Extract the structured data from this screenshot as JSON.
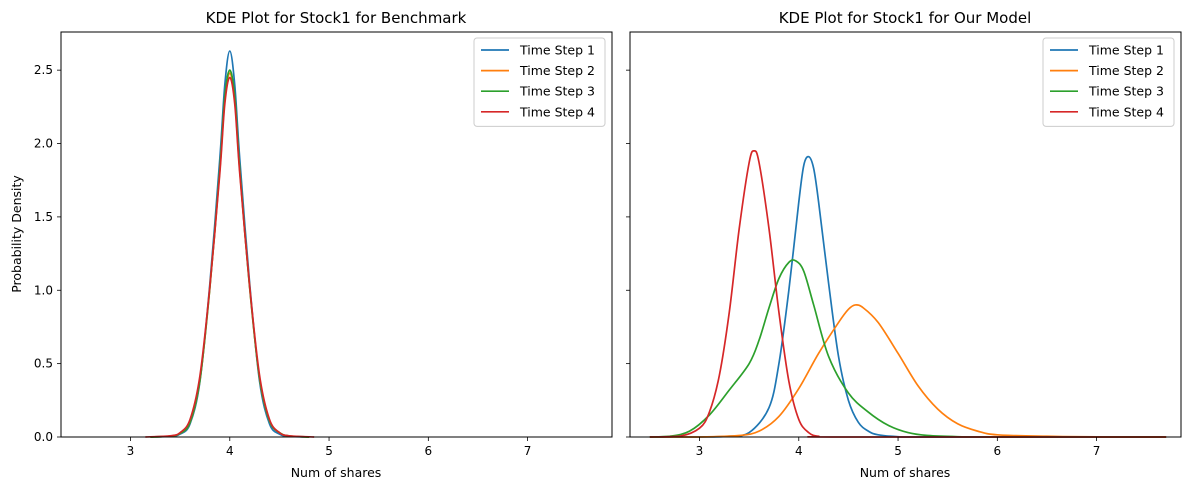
{
  "chart_data": [
    {
      "type": "line",
      "title": "KDE Plot for Stock1 for Benchmark",
      "xlabel": "Num of shares",
      "ylabel": "Probability Density",
      "xlim": [
        2.3,
        7.85
      ],
      "ylim": [
        0,
        2.76
      ],
      "xticks": [
        "3",
        "4",
        "5",
        "6",
        "7"
      ],
      "yticks": [
        "0.0",
        "0.5",
        "1.0",
        "1.5",
        "2.0",
        "2.5"
      ],
      "legend_position": "top-right",
      "series": [
        {
          "name": "Time Step 1",
          "color": "#1f77b4",
          "x": [
            3.2,
            3.4,
            3.5,
            3.6,
            3.7,
            3.8,
            3.9,
            3.95,
            4.0,
            4.05,
            4.1,
            4.2,
            4.3,
            4.4,
            4.5,
            4.6,
            4.8
          ],
          "y": [
            0.0,
            0.005,
            0.02,
            0.09,
            0.38,
            1.05,
            1.9,
            2.4,
            2.63,
            2.4,
            1.9,
            1.05,
            0.38,
            0.09,
            0.02,
            0.005,
            0.0
          ]
        },
        {
          "name": "Time Step 2",
          "color": "#ff7f0e",
          "x": [
            3.2,
            3.4,
            3.5,
            3.6,
            3.7,
            3.8,
            3.9,
            3.95,
            4.0,
            4.05,
            4.1,
            4.2,
            4.3,
            4.4,
            4.5,
            4.6,
            4.8
          ],
          "y": [
            0.0,
            0.006,
            0.025,
            0.1,
            0.39,
            1.02,
            1.82,
            2.3,
            2.48,
            2.3,
            1.82,
            1.02,
            0.4,
            0.11,
            0.03,
            0.007,
            0.0
          ]
        },
        {
          "name": "Time Step 3",
          "color": "#2ca02c",
          "x": [
            3.2,
            3.4,
            3.5,
            3.6,
            3.7,
            3.8,
            3.9,
            3.95,
            4.0,
            4.05,
            4.1,
            4.2,
            4.3,
            4.4,
            4.5,
            4.6,
            4.8
          ],
          "y": [
            0.0,
            0.006,
            0.025,
            0.1,
            0.39,
            1.02,
            1.83,
            2.32,
            2.5,
            2.32,
            1.83,
            1.02,
            0.4,
            0.11,
            0.03,
            0.007,
            0.0
          ]
        },
        {
          "name": "Time Step 4",
          "color": "#d62728",
          "x": [
            3.15,
            3.4,
            3.5,
            3.6,
            3.7,
            3.8,
            3.9,
            3.95,
            4.0,
            4.05,
            4.1,
            4.2,
            4.3,
            4.4,
            4.5,
            4.6,
            4.85
          ],
          "y": [
            0.0,
            0.008,
            0.03,
            0.12,
            0.42,
            1.03,
            1.8,
            2.27,
            2.45,
            2.27,
            1.8,
            1.03,
            0.42,
            0.12,
            0.03,
            0.008,
            0.0
          ]
        }
      ]
    },
    {
      "type": "line",
      "title": "KDE Plot for Stock1 for Our Model",
      "xlabel": "Num of shares",
      "ylabel": "",
      "xlim": [
        2.3,
        7.85
      ],
      "ylim": [
        0,
        2.76
      ],
      "xticks": [
        "3",
        "4",
        "5",
        "6",
        "7"
      ],
      "yticks": [],
      "legend_position": "top-right",
      "series": [
        {
          "name": "Time Step 1",
          "color": "#1f77b4",
          "x": [
            2.5,
            3.0,
            3.3,
            3.5,
            3.7,
            3.8,
            3.9,
            4.0,
            4.05,
            4.1,
            4.15,
            4.2,
            4.3,
            4.4,
            4.5,
            4.6,
            4.7,
            4.8,
            5.0,
            5.3,
            7.7
          ],
          "y": [
            0.0,
            0.0,
            0.005,
            0.03,
            0.2,
            0.5,
            1.0,
            1.6,
            1.85,
            1.91,
            1.83,
            1.6,
            1.05,
            0.55,
            0.25,
            0.1,
            0.04,
            0.015,
            0.002,
            0.0,
            0.0
          ]
        },
        {
          "name": "Time Step 2",
          "color": "#ff7f0e",
          "x": [
            2.5,
            3.0,
            3.4,
            3.6,
            3.8,
            4.0,
            4.2,
            4.4,
            4.5,
            4.57,
            4.65,
            4.8,
            5.0,
            5.2,
            5.4,
            5.6,
            5.8,
            6.0,
            6.5,
            7.0,
            7.7
          ],
          "y": [
            0.0,
            0.0,
            0.01,
            0.04,
            0.14,
            0.33,
            0.57,
            0.78,
            0.87,
            0.9,
            0.88,
            0.78,
            0.57,
            0.35,
            0.19,
            0.09,
            0.04,
            0.015,
            0.005,
            0.001,
            0.0
          ]
        },
        {
          "name": "Time Step 3",
          "color": "#2ca02c",
          "x": [
            2.5,
            2.7,
            2.9,
            3.1,
            3.3,
            3.5,
            3.6,
            3.7,
            3.8,
            3.9,
            3.97,
            4.05,
            4.15,
            4.3,
            4.5,
            4.7,
            4.9,
            5.1,
            5.3,
            5.6,
            6.0,
            7.7
          ],
          "y": [
            0.0,
            0.005,
            0.04,
            0.15,
            0.32,
            0.5,
            0.66,
            0.88,
            1.08,
            1.19,
            1.2,
            1.13,
            0.9,
            0.55,
            0.3,
            0.17,
            0.08,
            0.03,
            0.01,
            0.002,
            0.0,
            0.0
          ]
        },
        {
          "name": "Time Step 4",
          "color": "#d62728",
          "x": [
            2.5,
            2.8,
            3.0,
            3.1,
            3.2,
            3.3,
            3.4,
            3.5,
            3.55,
            3.6,
            3.7,
            3.8,
            3.9,
            4.0,
            4.1,
            4.2,
            4.4,
            7.7
          ],
          "y": [
            0.0,
            0.005,
            0.06,
            0.17,
            0.42,
            0.85,
            1.42,
            1.87,
            1.95,
            1.87,
            1.42,
            0.85,
            0.38,
            0.12,
            0.03,
            0.005,
            0.0,
            0.0
          ]
        }
      ]
    }
  ]
}
